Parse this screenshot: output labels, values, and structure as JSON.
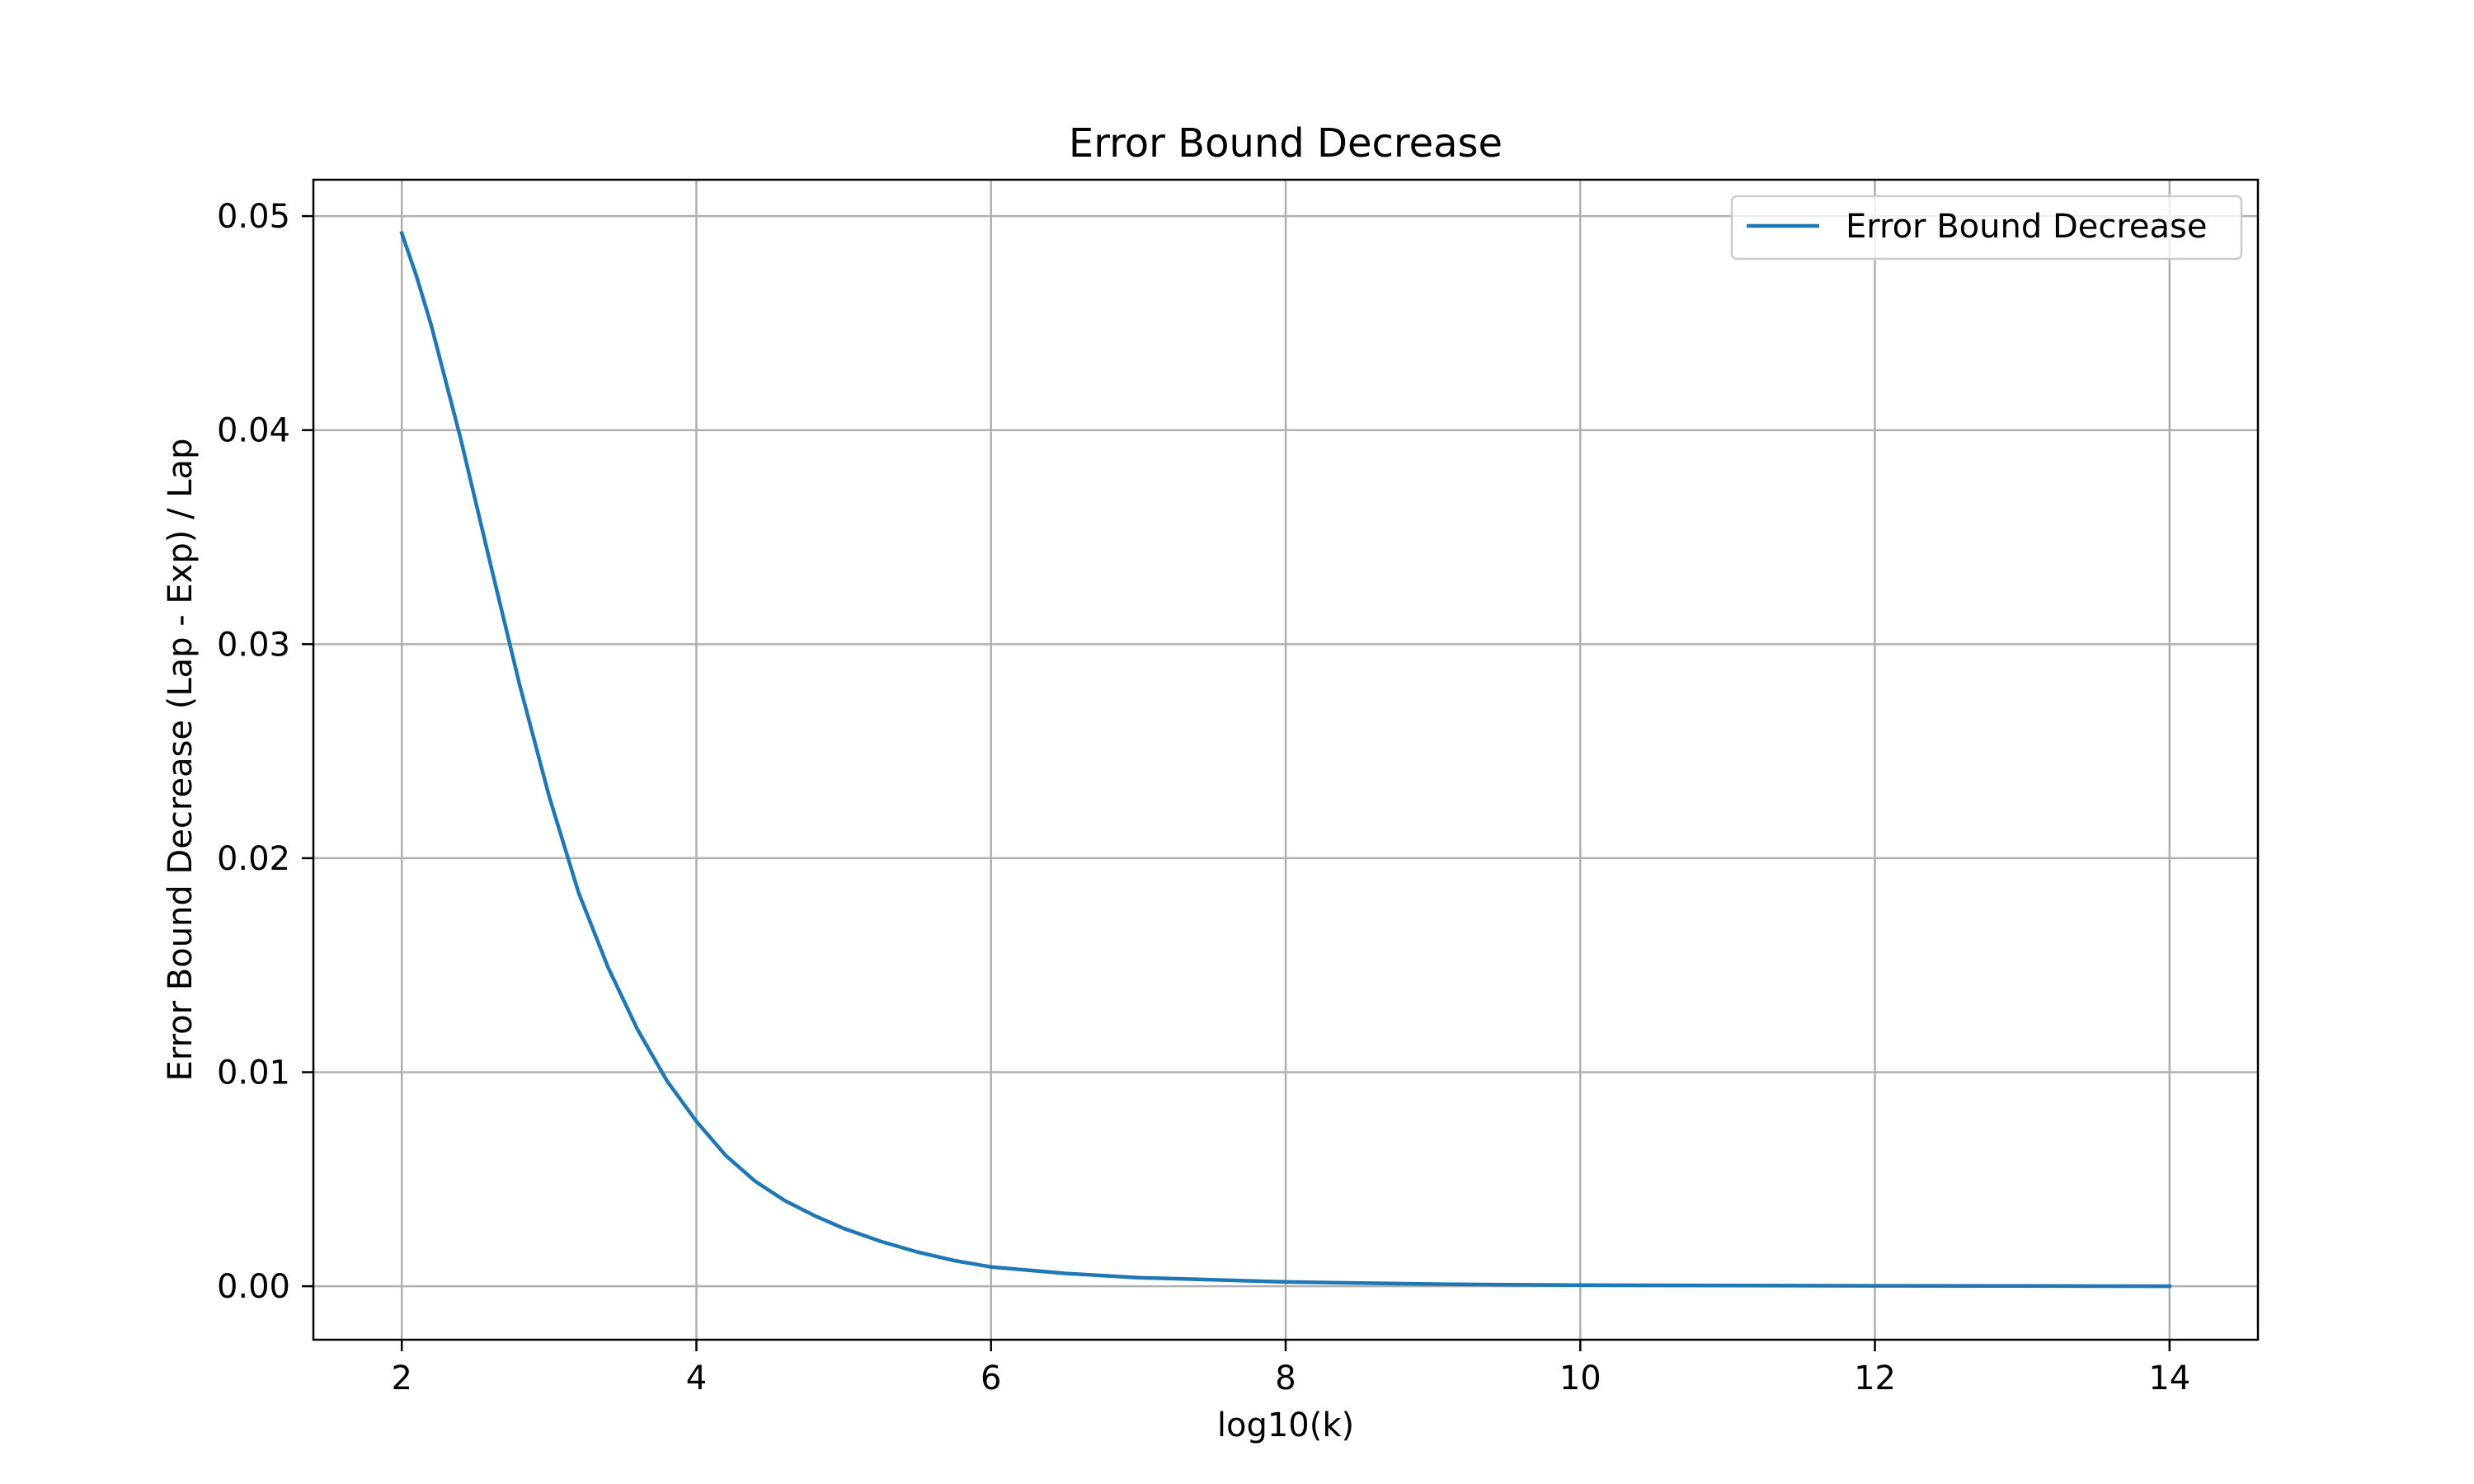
{
  "chart_data": {
    "type": "line",
    "title": "Error Bound Decrease",
    "xlabel": "log10(k)",
    "ylabel": "Error Bound Decrease (Lap - Exp) / Lap",
    "xlim": [
      1.4,
      14.6
    ],
    "ylim": [
      -0.0025,
      0.0517
    ],
    "xticks": [
      2,
      4,
      6,
      8,
      10,
      12,
      14
    ],
    "xtick_labels": [
      "2",
      "4",
      "6",
      "8",
      "10",
      "12",
      "14"
    ],
    "yticks": [
      0.0,
      0.01,
      0.02,
      0.03,
      0.04,
      0.05
    ],
    "ytick_labels": [
      "0.00",
      "0.01",
      "0.02",
      "0.03",
      "0.04",
      "0.05"
    ],
    "grid": true,
    "legend_position": "top-right",
    "series": [
      {
        "name": "Error Bound Decrease",
        "color": "#1f77b4",
        "x": [
          2.0,
          2.1,
          2.2,
          2.4,
          2.6,
          2.8,
          3.0,
          3.2,
          3.4,
          3.6,
          3.8,
          4.0,
          4.2,
          4.4,
          4.6,
          4.8,
          5.0,
          5.25,
          5.5,
          5.75,
          6.0,
          6.5,
          7.0,
          7.5,
          8.0,
          8.5,
          9.0,
          9.5,
          10.0,
          11.0,
          12.0,
          13.0,
          14.0
        ],
        "y": [
          0.0492,
          0.0472,
          0.0449,
          0.0396,
          0.0338,
          0.0281,
          0.0229,
          0.0184,
          0.0149,
          0.012,
          0.0096,
          0.0077,
          0.0061,
          0.0049,
          0.004,
          0.0033,
          0.0027,
          0.0021,
          0.0016,
          0.0012,
          0.0009,
          0.0006,
          0.0004,
          0.0003,
          0.0002,
          0.00015,
          0.0001,
          7e-05,
          5e-05,
          3e-05,
          2e-05,
          1e-05,
          0.0
        ]
      }
    ]
  }
}
